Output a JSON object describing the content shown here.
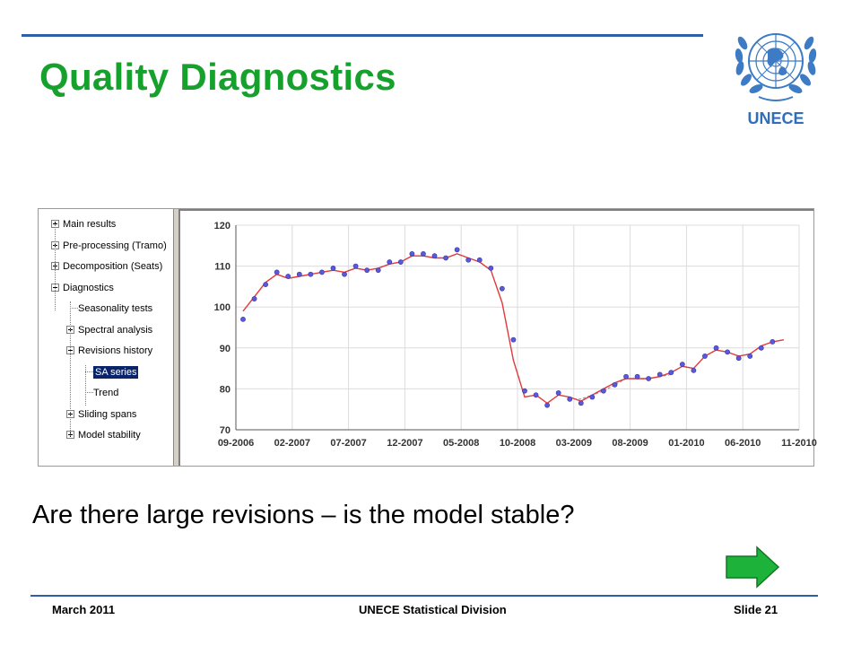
{
  "slide": {
    "title": "Quality Diagnostics",
    "question": "Are there large revisions – is the model stable?",
    "logo_text": "UNECE",
    "footer": {
      "date": "March 2011",
      "org": "UNECE Statistical Division",
      "slide_number": "Slide 21"
    },
    "colors": {
      "title": "#16a12c",
      "rule": "#2f5fa6",
      "arrow": "#1db33a"
    }
  },
  "tree": {
    "items": [
      {
        "label": "Main results",
        "expander": "plus"
      },
      {
        "label": "Pre-processing (Tramo)",
        "expander": "plus"
      },
      {
        "label": "Decomposition (Seats)",
        "expander": "plus"
      },
      {
        "label": "Diagnostics",
        "expander": "minus"
      },
      {
        "label": "Seasonality tests",
        "expander": "none"
      },
      {
        "label": "Spectral analysis",
        "expander": "plus"
      },
      {
        "label": "Revisions history",
        "expander": "minus"
      },
      {
        "label": "SA series",
        "expander": "none",
        "selected": true
      },
      {
        "label": "Trend",
        "expander": "none"
      },
      {
        "label": "Sliding spans",
        "expander": "plus"
      },
      {
        "label": "Model stability",
        "expander": "plus"
      }
    ]
  },
  "chart_data": {
    "type": "line",
    "title": "",
    "xlabel": "",
    "ylabel": "",
    "ylim": [
      70,
      120
    ],
    "yticks": [
      "120",
      "110",
      "100",
      "90",
      "80",
      "70"
    ],
    "xticks": [
      "09-2006",
      "02-2007",
      "07-2007",
      "12-2007",
      "05-2008",
      "10-2008",
      "03-2009",
      "08-2009",
      "01-2010",
      "06-2010",
      "11-2010"
    ],
    "grid": true,
    "x_start_index": 0,
    "series": [
      {
        "style": "points",
        "color": "#5a5ad8",
        "values": [
          97,
          102,
          105.5,
          108.5,
          107.5,
          108,
          108,
          108.5,
          109.5,
          108,
          110,
          109,
          109,
          111,
          111,
          113,
          113,
          112.5,
          112,
          114,
          111.5,
          111.5,
          109.5,
          104.5,
          92,
          79.5,
          78.5,
          76,
          79,
          77.5,
          76.5,
          78,
          79.5,
          81,
          83,
          83,
          82.5,
          83.5,
          84,
          86,
          84.5,
          88,
          90,
          89,
          87.5,
          88,
          90,
          91.5
        ]
      },
      {
        "style": "line",
        "color": "#e03a3a",
        "values": [
          99,
          102.5,
          106,
          108,
          107,
          107.5,
          108,
          108.5,
          109,
          108.5,
          109.5,
          109,
          109.5,
          110.5,
          111,
          112.5,
          112.5,
          112,
          112,
          113,
          112,
          111,
          109,
          101,
          87,
          78,
          78.5,
          76.5,
          78.5,
          78,
          77,
          78.5,
          80,
          81.5,
          82.5,
          82.5,
          82.5,
          83,
          84,
          85.5,
          85,
          88,
          89.5,
          89,
          88,
          88.5,
          90.5,
          91.5,
          92
        ]
      },
      {
        "style": "dashed",
        "color": "#999999",
        "values": [
          null,
          null,
          null,
          null,
          null,
          null,
          null,
          null,
          null,
          null,
          null,
          null,
          null,
          null,
          null,
          null,
          null,
          null,
          null,
          null,
          null,
          null,
          null,
          null,
          null,
          null,
          null,
          null,
          null,
          77.5,
          77.5,
          78.5,
          79.5,
          81,
          82.5,
          82.5,
          82.5,
          83,
          83.5
        ]
      }
    ]
  }
}
